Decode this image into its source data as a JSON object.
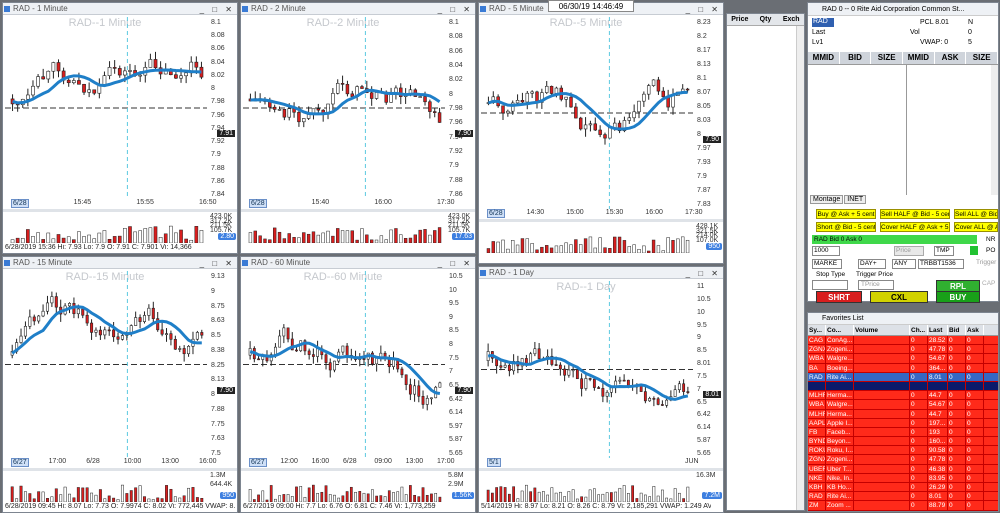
{
  "clock": "06/30/19 14:46:49",
  "charts": [
    {
      "id": "c1",
      "win": "RAD - 1 Minute",
      "title": "RAD--1 Minute",
      "prices": [
        "8.1",
        "8.08",
        "8.06",
        "8.04",
        "8.02",
        "8",
        "7.98",
        "7.96",
        "7.94",
        "7.92",
        "7.9",
        "7.88",
        "7.86",
        "7.84"
      ],
      "price_badge": "7.91",
      "xlabels": [
        "6/28",
        "15:45",
        "15:55",
        "16:50"
      ],
      "vol_ticks": [
        "423.0K",
        "317.2K",
        "211.5K",
        "105.7K"
      ],
      "vol_badge": "2.80",
      "stats": "6/28/2019 15:36  Hi: 7.93  Lo: 7.9  O: 7.91  C: 7.901  Vi: 14,366"
    },
    {
      "id": "c2",
      "win": "RAD - 2 Minute",
      "title": "RAD--2 Minute",
      "prices": [
        "8.1",
        "8.08",
        "8.06",
        "8.04",
        "8.02",
        "8",
        "7.98",
        "7.96",
        "7.94",
        "7.92",
        "7.9",
        "7.88",
        "7.86"
      ],
      "price_badge": "7.90",
      "xlabels": [
        "6/28",
        "15:40",
        "16:00",
        "17:30"
      ],
      "vol_ticks": [
        "423.0K",
        "317.2K",
        "211.5K",
        "105.7K"
      ],
      "vol_badge": "17.63",
      "stats": ""
    },
    {
      "id": "c3",
      "win": "RAD - 5 Minute",
      "title": "RAD--5 Minute",
      "prices": [
        "8.23",
        "8.2",
        "8.17",
        "8.13",
        "8.1",
        "8.07",
        "8.05",
        "8.03",
        "8",
        "7.97",
        "7.93",
        "7.9",
        "7.87",
        "7.83"
      ],
      "price_badge": "7.90",
      "xlabels": [
        "6/28",
        "14:30",
        "15:00",
        "15:30",
        "16:00",
        "17:30"
      ],
      "vol_ticks": [
        "428.1K",
        "321.5K",
        "214.0K",
        "107.0K"
      ],
      "vol_badge": "950",
      "stats": ""
    },
    {
      "id": "c4",
      "win": "RAD - 15 Minute",
      "title": "RAD--15 Minute",
      "prices": [
        "9.13",
        "9",
        "8.75",
        "8.63",
        "8.5",
        "8.38",
        "8.25",
        "8.13",
        "8",
        "7.88",
        "7.75",
        "7.63",
        "7.5"
      ],
      "price_badge": "7.90",
      "xlabels": [
        "6/27",
        "17:00",
        "6/28",
        "10:00",
        "13:00",
        "16:00"
      ],
      "vol_ticks": [
        "1.3M",
        "644.4K"
      ],
      "vol_badge": "950",
      "stats": "6/28/2019 09:45  Hi: 8.07  Lo: 7.73  O: 7.9974  C: 8.02  Vi: 772,445  VWAP: 8.127  AVG: 8.475"
    },
    {
      "id": "c5",
      "win": "RAD - 60 Minute",
      "title": "RAD--60 Minute",
      "prices": [
        "10.5",
        "10",
        "9.5",
        "9",
        "8.5",
        "8",
        "7.5",
        "7",
        "6.5",
        "6.42",
        "6.14",
        "5.97",
        "5.87",
        "5.65"
      ],
      "price_badge": "7.90",
      "xlabels": [
        "6/27",
        "12:00",
        "16:00",
        "6/28",
        "09:00",
        "13:00",
        "17:00"
      ],
      "vol_ticks": [
        "5.8M",
        "2.9M"
      ],
      "vol_badge": "1.56K",
      "stats": "6/27/2019 09:00  Hi: 7.7  Lo: 6.76  O: 6.81  C: 7.46  Vi: 1,773,259"
    },
    {
      "id": "c6",
      "win": "RAD - 1 Day",
      "title": "RAD--1 Day",
      "prices": [
        "11",
        "10.5",
        "10",
        "9.5",
        "9",
        "8.5",
        "8.01",
        "7.5",
        "7",
        "6.5",
        "6.42",
        "6.14",
        "5.87",
        "5.65"
      ],
      "price_badge": "8.01",
      "xlabels": [
        "5/1",
        "JUN"
      ],
      "vol_ticks": [
        "16.3M"
      ],
      "vol_badge": "7.2M",
      "stats": "5/14/2019  Hi: 8.97  Lo: 8.21  O: 8.26  C: 8.79  Vi: 2,185,291  VWAP: 1.249  AVG: 7.103  AVG: 8.1"
    }
  ],
  "pq": {
    "h": [
      "Price",
      "Qty",
      "Exch"
    ]
  },
  "ob": {
    "title": "RAD   0 -- 0     Rite Aid Corporation Common St...",
    "sym": "RAD",
    "lines": [
      "Last",
      "Lv1"
    ],
    "pcl": "PCL 8.01",
    "vol": "Vol",
    "vwap": "VWAP: 0",
    "n": "N",
    "z": "0",
    "five": "5",
    "hdr": [
      "MMID",
      "BID",
      "SIZE",
      "MMID",
      "ASK",
      "SIZE"
    ],
    "tabs": [
      "Montage",
      "INET"
    ],
    "y": [
      "Buy @ Ask + 5 cent",
      "Sell HALF @ Bid - 5 cent",
      "Sell ALL @ Bid - 5",
      "Short @ Bid - 5 cent",
      "Cover HALF @ Ask + 5 cent",
      "Cover ALL @ Ask +"
    ],
    "bidline": "RAD Bid 0 Ask 0",
    "qty": "1000",
    "px": "Price",
    "tmp": "TMP",
    "mkt": "MARKE",
    "day": "DAY+",
    "any": "ANY",
    "route": "TRBBT1536",
    "stop": "Stop Type",
    "trig": "Trigger Price",
    "tprice": "TPrice",
    "nr": "NR",
    "po": "PO",
    "trigger": "Trigger",
    "cap": "CAP",
    "rpl": "RPL",
    "shrt": "SHRT",
    "cxl": "CXL",
    "buy": "BUY"
  },
  "fl": {
    "title": "Favorites List",
    "hdr": [
      "Sy...",
      "Co...",
      "Volume",
      "Ch...",
      "Last",
      "Bid",
      "Ask"
    ],
    "rows": [
      [
        "CAG",
        "ConAg...",
        "",
        "0",
        "28.52",
        "0",
        "0"
      ],
      [
        "ZGNX",
        "Zogeni...",
        "",
        "0",
        "47.78",
        "0",
        "0"
      ],
      [
        "WBA",
        "Walgre...",
        "",
        "0",
        "54.67",
        "0",
        "0"
      ],
      [
        "BA",
        "Boeing...",
        "",
        "0",
        "364...",
        "0",
        "0"
      ],
      [
        "RAD",
        "Rite Ai...",
        "",
        "0",
        "8.01",
        "0",
        "0"
      ],
      [
        "",
        "",
        "",
        "",
        "",
        "",
        ""
      ],
      [
        "MLHR",
        "Herma...",
        "",
        "0",
        "44.7",
        "0",
        "0"
      ],
      [
        "WBA",
        "Walgre...",
        "",
        "0",
        "54.67",
        "0",
        "0"
      ],
      [
        "MLHR",
        "Herma...",
        "",
        "0",
        "44.7",
        "0",
        "0"
      ],
      [
        "AAPL",
        "Apple I...",
        "",
        "0",
        "197...",
        "0",
        "0"
      ],
      [
        "FB",
        "Faceb...",
        "",
        "0",
        "193",
        "0",
        "0"
      ],
      [
        "BYND",
        "Beyon...",
        "",
        "0",
        "160...",
        "0",
        "0"
      ],
      [
        "ROKU",
        "Roku, I...",
        "",
        "0",
        "90.58",
        "0",
        "0"
      ],
      [
        "ZGNX",
        "Zogeni...",
        "",
        "0",
        "47.78",
        "0",
        "0"
      ],
      [
        "UBER",
        "Uber T...",
        "",
        "0",
        "46.38",
        "0",
        "0"
      ],
      [
        "NKE",
        "Nike, In...",
        "",
        "0",
        "83.95",
        "0",
        "0"
      ],
      [
        "KBH",
        "KB Ho...",
        "",
        "0",
        "26.29",
        "0",
        "0"
      ],
      [
        "RAD",
        "Rite Ai...",
        "",
        "0",
        "8.01",
        "0",
        "0"
      ],
      [
        "ZM",
        "Zoom ...",
        "",
        "0",
        "88.79",
        "0",
        "0"
      ]
    ]
  },
  "colors": {
    "up": "#ffffff",
    "down": "#d81e1e",
    "ma": "#1f7fc8",
    "accent": "#ffff00",
    "fav_row": "#ff2a1a"
  }
}
